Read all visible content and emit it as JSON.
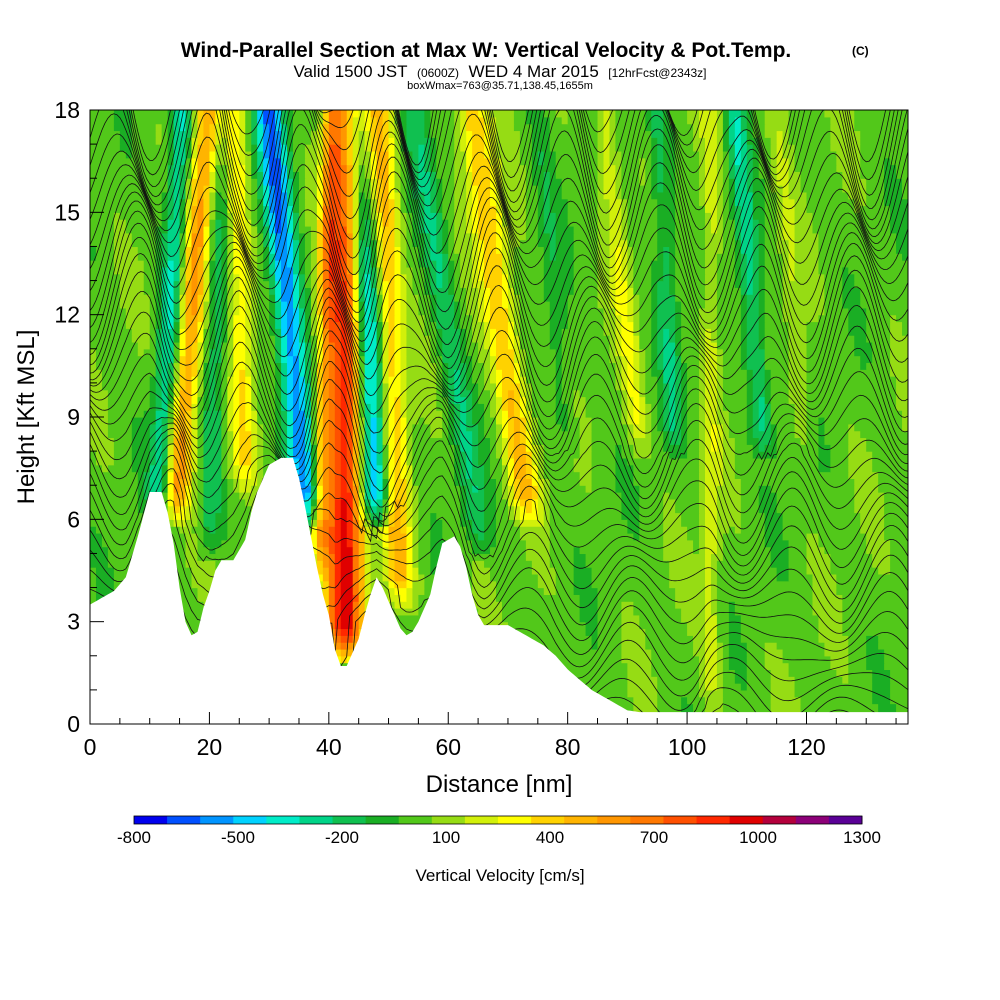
{
  "chart_data": {
    "type": "heatmap",
    "title": "Wind-Parallel Section at Max W: Vertical Velocity & Pot.Temp.",
    "title_mark": "(C)",
    "subtitle": {
      "pre": "Valid 1500 JST",
      "utc": "(0600Z)",
      "date": "WED 4 Mar 2015",
      "fcst": "[12hrFcst@2343z]"
    },
    "info": "boxWmax=763@35.71,138.45,1655m",
    "xlabel": "Distance [nm]",
    "ylabel": "Height [Kft MSL]",
    "xlim": [
      0,
      137
    ],
    "ylim": [
      0,
      18
    ],
    "xticks": [
      0,
      20,
      40,
      60,
      80,
      100,
      120
    ],
    "yticks": [
      0,
      3,
      6,
      9,
      12,
      15,
      18
    ],
    "colorbar": {
      "label": "Vertical Velocity [cm/s]",
      "ticks": [
        -800,
        -500,
        -200,
        100,
        400,
        700,
        1000,
        1300
      ],
      "min": -800,
      "max": 1300,
      "colors": [
        "#0000ee",
        "#0050ff",
        "#0094ff",
        "#00d2ff",
        "#00ecc8",
        "#00d488",
        "#10c050",
        "#1aae24",
        "#52c81a",
        "#96dc14",
        "#d2f00a",
        "#ffff00",
        "#ffd200",
        "#ffb400",
        "#ff9600",
        "#ff7800",
        "#ff5000",
        "#ff2800",
        "#e00000",
        "#b4003c",
        "#8c0078",
        "#5a0096"
      ]
    },
    "jet_segments": [
      {
        "x0": 42.5,
        "y0": 2.0,
        "x1": 43.5,
        "y1": 18,
        "w": 920,
        "h": 3.2
      },
      {
        "x0": 48.0,
        "y0": 6.0,
        "x1": 44.5,
        "y1": 18,
        "w": -700,
        "h": 2.6
      },
      {
        "x0": 36.5,
        "y0": 6.0,
        "x1": 30.0,
        "y1": 18,
        "w": -620,
        "h": 2.4
      },
      {
        "x0": 14.0,
        "y0": 6.0,
        "x1": 20.0,
        "y1": 18,
        "w": 560,
        "h": 2.4
      },
      {
        "x0": 11.5,
        "y0": 6.0,
        "x1": 15.5,
        "y1": 18,
        "w": -380,
        "h": 2.0
      },
      {
        "x0": 20.0,
        "y0": 5.0,
        "x1": 22.0,
        "y1": 18,
        "w": -220,
        "h": 2.0
      },
      {
        "x0": 26.0,
        "y0": 7.0,
        "x1": 24.0,
        "y1": 18,
        "w": 320,
        "h": 2.0
      },
      {
        "x0": 38.5,
        "y0": 4.5,
        "x1": 40.5,
        "y1": 18,
        "w": 380,
        "h": 1.6
      },
      {
        "x0": 52.0,
        "y0": 3.5,
        "x1": 48.5,
        "y1": 18,
        "w": 450,
        "h": 2.4
      },
      {
        "x0": 65.5,
        "y0": 5.0,
        "x1": 54.5,
        "y1": 18,
        "w": -230,
        "h": 2.2
      },
      {
        "x0": 73.5,
        "y0": 6.0,
        "x1": 64.0,
        "y1": 18,
        "w": 430,
        "h": 2.6
      },
      {
        "x0": 80.0,
        "y0": 8.0,
        "x1": 75.0,
        "y1": 18,
        "w": -120,
        "h": 1.8
      },
      {
        "x0": 92.0,
        "y0": 8.0,
        "x1": 86.0,
        "y1": 18,
        "w": 220,
        "h": 1.8
      },
      {
        "x0": 98.0,
        "y0": 8.0,
        "x1": 95.0,
        "y1": 18,
        "w": -220,
        "h": 1.8
      },
      {
        "x0": 104.0,
        "y0": 0.5,
        "x1": 104.0,
        "y1": 18,
        "w": 180,
        "h": 1.6
      },
      {
        "x0": 113.0,
        "y0": 8.0,
        "x1": 108.0,
        "y1": 18,
        "w": -300,
        "h": 1.8
      },
      {
        "x0": 120.0,
        "y0": 8.0,
        "x1": 115.0,
        "y1": 18,
        "w": 120,
        "h": 1.8
      }
    ]
  }
}
